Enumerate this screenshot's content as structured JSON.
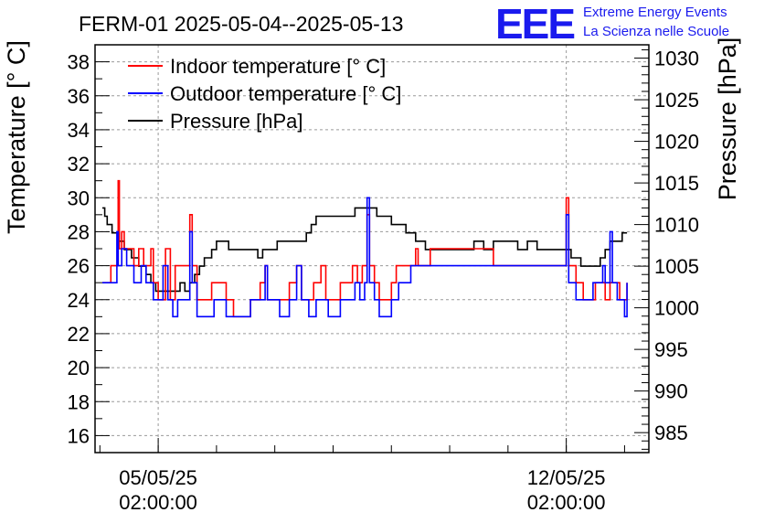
{
  "header": {
    "title": "FERM-01 2025-05-04--2025-05-13",
    "logo_letters": "EEE",
    "logo_line1": "Extreme Energy Events",
    "logo_line2": "La Scienza nelle Scuole"
  },
  "colors": {
    "indoor": "#ff0000",
    "outdoor": "#0000ff",
    "pressure": "#000000",
    "logo": "#1a1aee",
    "grid": "#9a9a9a"
  },
  "chart_data": {
    "type": "line",
    "title": "FERM-01 2025-05-04--2025-05-13",
    "ylabel": "Temperature [° C]",
    "y2label": "Pressure [hPa]",
    "ylim": [
      15,
      39
    ],
    "y2lim": [
      982.6,
      1031.6
    ],
    "xlim": [
      "2025-05-04T00:00",
      "2025-05-13T12:00"
    ],
    "grid": true,
    "legend_position": "top-left",
    "yticks": [
      "16",
      "18",
      "20",
      "22",
      "24",
      "26",
      "28",
      "30",
      "32",
      "34",
      "36",
      "38"
    ],
    "y2ticks": [
      "985",
      "990",
      "995",
      "1000",
      "1005",
      "1010",
      "1015",
      "1020",
      "1025",
      "1030"
    ],
    "xticks": [
      {
        "x": "2025-05-05T02:00",
        "label_date": "05/05/25",
        "label_time": "02:00:00"
      },
      {
        "x": "2025-05-12T02:00",
        "label_date": "12/05/25",
        "label_time": "02:00:00"
      }
    ],
    "series": [
      {
        "name": "Indoor temperature [° C]",
        "axis": "left",
        "points": [
          [
            "2025-05-04T03:00",
            25
          ],
          [
            "2025-05-04T06:00",
            25
          ],
          [
            "2025-05-04T06:30",
            26
          ],
          [
            "2025-05-04T09:00",
            26
          ],
          [
            "2025-05-04T09:30",
            31
          ],
          [
            "2025-05-04T10:00",
            27
          ],
          [
            "2025-05-04T11:00",
            28
          ],
          [
            "2025-05-04T12:00",
            27
          ],
          [
            "2025-05-04T16:00",
            26
          ],
          [
            "2025-05-04T18:00",
            27
          ],
          [
            "2025-05-04T20:00",
            26
          ],
          [
            "2025-05-04T23:00",
            27
          ],
          [
            "2025-05-05T00:00",
            25
          ],
          [
            "2025-05-05T02:00",
            24
          ],
          [
            "2025-05-05T04:00",
            24
          ],
          [
            "2025-05-05T05:00",
            27
          ],
          [
            "2025-05-05T07:00",
            24
          ],
          [
            "2025-05-05T09:00",
            26
          ],
          [
            "2025-05-05T12:00",
            26
          ],
          [
            "2025-05-05T14:00",
            26
          ],
          [
            "2025-05-05T15:00",
            29
          ],
          [
            "2025-05-05T16:00",
            26
          ],
          [
            "2025-05-05T18:00",
            24
          ],
          [
            "2025-05-05T22:00",
            24
          ],
          [
            "2025-05-06T00:00",
            25
          ],
          [
            "2025-05-06T04:00",
            25
          ],
          [
            "2025-05-06T06:00",
            24
          ],
          [
            "2025-05-06T09:00",
            23
          ],
          [
            "2025-05-06T14:00",
            23
          ],
          [
            "2025-05-06T16:00",
            24
          ],
          [
            "2025-05-06T20:00",
            25
          ],
          [
            "2025-05-06T22:00",
            26
          ],
          [
            "2025-05-06T23:00",
            24
          ],
          [
            "2025-05-07T02:00",
            24
          ],
          [
            "2025-05-07T06:00",
            24
          ],
          [
            "2025-05-07T08:00",
            25
          ],
          [
            "2025-05-07T10:00",
            25
          ],
          [
            "2025-05-07T11:00",
            26
          ],
          [
            "2025-05-07T13:00",
            24
          ],
          [
            "2025-05-07T16:00",
            24
          ],
          [
            "2025-05-07T18:00",
            25
          ],
          [
            "2025-05-07T21:00",
            26
          ],
          [
            "2025-05-07T23:00",
            24
          ],
          [
            "2025-05-08T03:00",
            24
          ],
          [
            "2025-05-08T05:00",
            25
          ],
          [
            "2025-05-08T08:00",
            25
          ],
          [
            "2025-05-08T10:00",
            26
          ],
          [
            "2025-05-08T12:00",
            25
          ],
          [
            "2025-05-08T14:00",
            26
          ],
          [
            "2025-05-08T16:00",
            29
          ],
          [
            "2025-05-08T17:00",
            26
          ],
          [
            "2025-05-08T19:00",
            25
          ],
          [
            "2025-05-08T21:00",
            24
          ],
          [
            "2025-05-09T00:00",
            24
          ],
          [
            "2025-05-09T02:00",
            25
          ],
          [
            "2025-05-09T04:00",
            26
          ],
          [
            "2025-05-09T08:00",
            26
          ],
          [
            "2025-05-09T10:00",
            26
          ],
          [
            "2025-05-09T12:00",
            27
          ],
          [
            "2025-05-09T13:00",
            26
          ],
          [
            "2025-05-09T16:00",
            26
          ],
          [
            "2025-05-09T18:00",
            27
          ],
          [
            "2025-05-09T20:00",
            27
          ],
          [
            "2025-05-10T00:00",
            27
          ],
          [
            "2025-05-10T04:00",
            27
          ],
          [
            "2025-05-10T08:00",
            27
          ],
          [
            "2025-05-10T12:00",
            27
          ],
          [
            "2025-05-10T16:00",
            27
          ],
          [
            "2025-05-10T20:00",
            26
          ],
          [
            "2025-05-10T23:00",
            26
          ],
          [
            "2025-05-11T04:00",
            26
          ],
          [
            "2025-05-11T08:00",
            26
          ],
          [
            "2025-05-11T12:00",
            26
          ],
          [
            "2025-05-11T16:00",
            26
          ],
          [
            "2025-05-11T20:00",
            26
          ],
          [
            "2025-05-12T00:00",
            26
          ],
          [
            "2025-05-12T02:00",
            30
          ],
          [
            "2025-05-12T03:00",
            26
          ],
          [
            "2025-05-12T06:00",
            25
          ],
          [
            "2025-05-12T09:00",
            24
          ],
          [
            "2025-05-12T12:00",
            24
          ],
          [
            "2025-05-12T14:00",
            25
          ],
          [
            "2025-05-12T16:00",
            25
          ],
          [
            "2025-05-12T18:00",
            24
          ],
          [
            "2025-05-12T20:00",
            25
          ],
          [
            "2025-05-12T22:00",
            25
          ],
          [
            "2025-05-13T00:00",
            24
          ],
          [
            "2025-05-13T02:00",
            24
          ],
          [
            "2025-05-13T03:00",
            25
          ]
        ]
      },
      {
        "name": "Outdoor temperature [° C]",
        "axis": "left",
        "points": [
          [
            "2025-05-04T03:00",
            25
          ],
          [
            "2025-05-04T08:00",
            25
          ],
          [
            "2025-05-04T09:00",
            28
          ],
          [
            "2025-05-04T09:30",
            26
          ],
          [
            "2025-05-04T11:00",
            27
          ],
          [
            "2025-05-04T13:00",
            26
          ],
          [
            "2025-05-04T16:00",
            25
          ],
          [
            "2025-05-04T19:00",
            26
          ],
          [
            "2025-05-04T21:00",
            25
          ],
          [
            "2025-05-05T00:00",
            24
          ],
          [
            "2025-05-05T02:00",
            24
          ],
          [
            "2025-05-05T04:00",
            26
          ],
          [
            "2025-05-05T06:00",
            24
          ],
          [
            "2025-05-05T08:00",
            23
          ],
          [
            "2025-05-05T10:00",
            24
          ],
          [
            "2025-05-05T13:00",
            24
          ],
          [
            "2025-05-05T15:00",
            28
          ],
          [
            "2025-05-05T16:00",
            25
          ],
          [
            "2025-05-05T18:00",
            23
          ],
          [
            "2025-05-05T22:00",
            23
          ],
          [
            "2025-05-06T01:00",
            24
          ],
          [
            "2025-05-06T04:00",
            24
          ],
          [
            "2025-05-06T06:00",
            23
          ],
          [
            "2025-05-06T10:00",
            23
          ],
          [
            "2025-05-06T14:00",
            23
          ],
          [
            "2025-05-06T16:00",
            24
          ],
          [
            "2025-05-06T20:00",
            24
          ],
          [
            "2025-05-06T22:00",
            26
          ],
          [
            "2025-05-06T23:00",
            24
          ],
          [
            "2025-05-07T04:00",
            23
          ],
          [
            "2025-05-07T08:00",
            24
          ],
          [
            "2025-05-07T10:00",
            24
          ],
          [
            "2025-05-07T11:00",
            26
          ],
          [
            "2025-05-07T13:00",
            24
          ],
          [
            "2025-05-07T16:00",
            23
          ],
          [
            "2025-05-07T19:00",
            24
          ],
          [
            "2025-05-07T21:00",
            24
          ],
          [
            "2025-05-08T00:00",
            23
          ],
          [
            "2025-05-08T03:00",
            23
          ],
          [
            "2025-05-08T05:00",
            24
          ],
          [
            "2025-05-08T08:00",
            24
          ],
          [
            "2025-05-08T11:00",
            25
          ],
          [
            "2025-05-08T13:00",
            24
          ],
          [
            "2025-05-08T15:00",
            25
          ],
          [
            "2025-05-08T16:00",
            30
          ],
          [
            "2025-05-08T17:00",
            25
          ],
          [
            "2025-05-08T19:00",
            24
          ],
          [
            "2025-05-08T21:00",
            23
          ],
          [
            "2025-05-09T00:00",
            23
          ],
          [
            "2025-05-09T02:00",
            24
          ],
          [
            "2025-05-09T05:00",
            25
          ],
          [
            "2025-05-09T08:00",
            25
          ],
          [
            "2025-05-09T10:00",
            26
          ],
          [
            "2025-05-09T14:00",
            26
          ],
          [
            "2025-05-09T18:00",
            26
          ],
          [
            "2025-05-10T00:00",
            26
          ],
          [
            "2025-05-10T06:00",
            26
          ],
          [
            "2025-05-10T12:00",
            26
          ],
          [
            "2025-05-10T18:00",
            26
          ],
          [
            "2025-05-11T00:00",
            26
          ],
          [
            "2025-05-11T06:00",
            26
          ],
          [
            "2025-05-11T12:00",
            26
          ],
          [
            "2025-05-11T18:00",
            26
          ],
          [
            "2025-05-12T00:00",
            26
          ],
          [
            "2025-05-12T02:00",
            29
          ],
          [
            "2025-05-12T03:00",
            25
          ],
          [
            "2025-05-12T06:00",
            24
          ],
          [
            "2025-05-12T09:00",
            24
          ],
          [
            "2025-05-12T13:00",
            25
          ],
          [
            "2025-05-12T16:00",
            25
          ],
          [
            "2025-05-12T17:00",
            26
          ],
          [
            "2025-05-12T18:00",
            25
          ],
          [
            "2025-05-12T20:00",
            28
          ],
          [
            "2025-05-12T21:00",
            25
          ],
          [
            "2025-05-12T23:00",
            24
          ],
          [
            "2025-05-13T01:00",
            24
          ],
          [
            "2025-05-13T02:00",
            23
          ],
          [
            "2025-05-13T03:00",
            25
          ]
        ]
      },
      {
        "name": "Pressure [hPa]",
        "axis": "right",
        "points": [
          [
            "2025-05-04T03:00",
            1012
          ],
          [
            "2025-05-04T04:00",
            1011
          ],
          [
            "2025-05-04T05:00",
            1010
          ],
          [
            "2025-05-04T07:00",
            1009
          ],
          [
            "2025-05-04T10:00",
            1008
          ],
          [
            "2025-05-04T12:00",
            1007
          ],
          [
            "2025-05-04T15:00",
            1006
          ],
          [
            "2025-05-04T18:00",
            1005
          ],
          [
            "2025-05-04T21:00",
            1004
          ],
          [
            "2025-05-04T23:00",
            1003
          ],
          [
            "2025-05-05T01:00",
            1002
          ],
          [
            "2025-05-05T04:00",
            1002
          ],
          [
            "2025-05-05T08:00",
            1002
          ],
          [
            "2025-05-05T11:00",
            1003
          ],
          [
            "2025-05-05T13:00",
            1002
          ],
          [
            "2025-05-05T15:00",
            1003
          ],
          [
            "2025-05-05T17:00",
            1004
          ],
          [
            "2025-05-05T19:00",
            1005
          ],
          [
            "2025-05-05T21:00",
            1006
          ],
          [
            "2025-05-06T00:00",
            1007
          ],
          [
            "2025-05-06T02:00",
            1008
          ],
          [
            "2025-05-06T04:00",
            1008
          ],
          [
            "2025-05-06T07:00",
            1007
          ],
          [
            "2025-05-06T10:00",
            1007
          ],
          [
            "2025-05-06T13:00",
            1007
          ],
          [
            "2025-05-06T16:00",
            1007
          ],
          [
            "2025-05-06T19:00",
            1006
          ],
          [
            "2025-05-06T21:00",
            1007
          ],
          [
            "2025-05-07T00:00",
            1007
          ],
          [
            "2025-05-07T03:00",
            1008
          ],
          [
            "2025-05-07T06:00",
            1008
          ],
          [
            "2025-05-07T09:00",
            1008
          ],
          [
            "2025-05-07T12:00",
            1008
          ],
          [
            "2025-05-07T15:00",
            1009
          ],
          [
            "2025-05-07T17:00",
            1010
          ],
          [
            "2025-05-07T19:00",
            1011
          ],
          [
            "2025-05-07T21:00",
            1011
          ],
          [
            "2025-05-08T00:00",
            1011
          ],
          [
            "2025-05-08T02:00",
            1011
          ],
          [
            "2025-05-08T05:00",
            1011
          ],
          [
            "2025-05-08T08:00",
            1011
          ],
          [
            "2025-05-08T11:00",
            1012
          ],
          [
            "2025-05-08T14:00",
            1012
          ],
          [
            "2025-05-08T17:00",
            1012
          ],
          [
            "2025-05-08T20:00",
            1011
          ],
          [
            "2025-05-08T23:00",
            1011
          ],
          [
            "2025-05-09T02:00",
            1010
          ],
          [
            "2025-05-09T05:00",
            1010
          ],
          [
            "2025-05-09T08:00",
            1009
          ],
          [
            "2025-05-09T12:00",
            1008
          ],
          [
            "2025-05-09T16:00",
            1007
          ],
          [
            "2025-05-09T20:00",
            1007
          ],
          [
            "2025-05-10T00:00",
            1007
          ],
          [
            "2025-05-10T06:00",
            1007
          ],
          [
            "2025-05-10T12:00",
            1008
          ],
          [
            "2025-05-10T16:00",
            1007
          ],
          [
            "2025-05-10T20:00",
            1008
          ],
          [
            "2025-05-11T00:00",
            1008
          ],
          [
            "2025-05-11T06:00",
            1007
          ],
          [
            "2025-05-11T10:00",
            1008
          ],
          [
            "2025-05-11T14:00",
            1007
          ],
          [
            "2025-05-11T20:00",
            1007
          ],
          [
            "2025-05-12T00:00",
            1007
          ],
          [
            "2025-05-12T04:00",
            1006
          ],
          [
            "2025-05-12T08:00",
            1005
          ],
          [
            "2025-05-12T12:00",
            1005
          ],
          [
            "2025-05-12T16:00",
            1006
          ],
          [
            "2025-05-12T18:00",
            1007
          ],
          [
            "2025-05-12T20:00",
            1008
          ],
          [
            "2025-05-12T22:00",
            1008
          ],
          [
            "2025-05-13T00:00",
            1008
          ],
          [
            "2025-05-13T01:00",
            1009
          ],
          [
            "2025-05-13T03:00",
            1009
          ]
        ]
      }
    ]
  }
}
